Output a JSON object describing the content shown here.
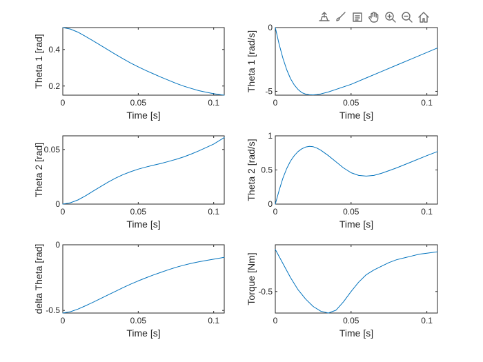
{
  "toolbar": {
    "tools": [
      {
        "icon": "export-icon"
      },
      {
        "icon": "brush-icon"
      },
      {
        "icon": "data-tips-icon"
      },
      {
        "icon": "pan-hand-icon"
      },
      {
        "icon": "zoom-in-icon"
      },
      {
        "icon": "zoom-out-icon"
      },
      {
        "icon": "home-icon"
      }
    ]
  },
  "colors": {
    "line": "#0072BD",
    "axis": "#262626"
  },
  "chart_data": [
    {
      "type": "line",
      "xlabel": "Time [s]",
      "ylabel": "Theta 1 [rad]",
      "xlim": [
        0,
        0.107
      ],
      "ylim": [
        0.15,
        0.52
      ],
      "xticks": [
        0,
        0.05,
        0.1
      ],
      "xtick_labels": [
        "0",
        "0.05",
        "0.1"
      ],
      "yticks": [
        0.2,
        0.4
      ],
      "ytick_labels": [
        "0.2",
        "0.4"
      ],
      "series": [
        {
          "x": [
            0,
            0.005,
            0.01,
            0.015,
            0.02,
            0.025,
            0.03,
            0.035,
            0.04,
            0.045,
            0.05,
            0.055,
            0.06,
            0.065,
            0.07,
            0.075,
            0.08,
            0.085,
            0.09,
            0.095,
            0.1,
            0.105,
            0.107
          ],
          "y": [
            0.52,
            0.512,
            0.495,
            0.472,
            0.448,
            0.423,
            0.398,
            0.373,
            0.349,
            0.326,
            0.305,
            0.285,
            0.267,
            0.249,
            0.232,
            0.215,
            0.2,
            0.187,
            0.175,
            0.166,
            0.158,
            0.152,
            0.15
          ]
        }
      ]
    },
    {
      "type": "line",
      "xlabel": "Time [s]",
      "ylabel": "Theta 1 [rad/s]",
      "xlim": [
        0,
        0.107
      ],
      "ylim": [
        -5.3,
        0
      ],
      "xticks": [
        0,
        0.05,
        0.1
      ],
      "xtick_labels": [
        "0",
        "0.05",
        "0.1"
      ],
      "yticks": [
        -5,
        0
      ],
      "ytick_labels": [
        "-5",
        "0"
      ],
      "series": [
        {
          "x": [
            0,
            0.0025,
            0.005,
            0.0075,
            0.01,
            0.0125,
            0.015,
            0.0175,
            0.02,
            0.0225,
            0.025,
            0.0275,
            0.03,
            0.035,
            0.04,
            0.05,
            0.06,
            0.07,
            0.08,
            0.09,
            0.1,
            0.107
          ],
          "y": [
            0,
            -1.3,
            -2.4,
            -3.3,
            -4.0,
            -4.5,
            -4.85,
            -5.1,
            -5.22,
            -5.27,
            -5.28,
            -5.25,
            -5.2,
            -5.05,
            -4.85,
            -4.45,
            -3.95,
            -3.45,
            -2.95,
            -2.45,
            -1.95,
            -1.6
          ]
        }
      ]
    },
    {
      "type": "line",
      "xlabel": "Time [s]",
      "ylabel": "Theta 2 [rad]",
      "xlim": [
        0,
        0.107
      ],
      "ylim": [
        0,
        0.0625
      ],
      "xticks": [
        0,
        0.05,
        0.1
      ],
      "xtick_labels": [
        "0",
        "0.05",
        "0.1"
      ],
      "yticks": [
        0,
        0.05
      ],
      "ytick_labels": [
        "0",
        "0.05"
      ],
      "series": [
        {
          "x": [
            0,
            0.005,
            0.01,
            0.015,
            0.02,
            0.025,
            0.03,
            0.035,
            0.04,
            0.045,
            0.05,
            0.055,
            0.06,
            0.065,
            0.07,
            0.075,
            0.08,
            0.085,
            0.09,
            0.095,
            0.1,
            0.105,
            0.107
          ],
          "y": [
            0,
            0.0012,
            0.0038,
            0.0075,
            0.0118,
            0.016,
            0.0201,
            0.0238,
            0.027,
            0.0297,
            0.032,
            0.0339,
            0.0356,
            0.0372,
            0.039,
            0.041,
            0.0432,
            0.0458,
            0.0487,
            0.0518,
            0.055,
            0.0592,
            0.061
          ]
        }
      ]
    },
    {
      "type": "line",
      "xlabel": "Time [s]",
      "ylabel": "Theta 2 [rad/s]",
      "xlim": [
        0,
        0.107
      ],
      "ylim": [
        0,
        1
      ],
      "xticks": [
        0,
        0.05,
        0.1
      ],
      "xtick_labels": [
        "0",
        "0.05",
        "0.1"
      ],
      "yticks": [
        0,
        0.5,
        1
      ],
      "ytick_labels": [
        "0",
        "0.5",
        "1"
      ],
      "series": [
        {
          "x": [
            0,
            0.0025,
            0.005,
            0.0075,
            0.01,
            0.0125,
            0.015,
            0.0175,
            0.02,
            0.0225,
            0.025,
            0.0275,
            0.03,
            0.035,
            0.04,
            0.045,
            0.05,
            0.055,
            0.06,
            0.065,
            0.07,
            0.075,
            0.08,
            0.09,
            0.1,
            0.107
          ],
          "y": [
            0,
            0.2,
            0.38,
            0.52,
            0.63,
            0.71,
            0.77,
            0.81,
            0.835,
            0.845,
            0.84,
            0.82,
            0.79,
            0.71,
            0.62,
            0.53,
            0.46,
            0.42,
            0.41,
            0.42,
            0.45,
            0.49,
            0.53,
            0.62,
            0.71,
            0.77
          ]
        }
      ]
    },
    {
      "type": "line",
      "xlabel": "Time [s]",
      "ylabel": "delta Theta [rad]",
      "xlim": [
        0,
        0.107
      ],
      "ylim": [
        -0.52,
        0
      ],
      "xticks": [
        0,
        0.05,
        0.1
      ],
      "xtick_labels": [
        "0",
        "0.05",
        "0.1"
      ],
      "yticks": [
        -0.5,
        0
      ],
      "ytick_labels": [
        "-0.5",
        "0"
      ],
      "series": [
        {
          "x": [
            0,
            0.005,
            0.01,
            0.015,
            0.02,
            0.025,
            0.03,
            0.035,
            0.04,
            0.045,
            0.05,
            0.055,
            0.06,
            0.065,
            0.07,
            0.075,
            0.08,
            0.085,
            0.09,
            0.095,
            0.1,
            0.105,
            0.107
          ],
          "y": [
            -0.52,
            -0.51,
            -0.49,
            -0.465,
            -0.438,
            -0.41,
            -0.382,
            -0.354,
            -0.326,
            -0.3,
            -0.275,
            -0.252,
            -0.23,
            -0.21,
            -0.19,
            -0.172,
            -0.156,
            -0.142,
            -0.13,
            -0.12,
            -0.11,
            -0.1,
            -0.095
          ]
        }
      ]
    },
    {
      "type": "line",
      "xlabel": "Time [s]",
      "ylabel": "Torque [Nm]",
      "xlim": [
        0,
        0.107
      ],
      "ylim": [
        -0.73,
        0
      ],
      "xticks": [
        0,
        0.05,
        0.1
      ],
      "xtick_labels": [
        "0",
        "0.05",
        "0.1"
      ],
      "yticks": [
        -0.5
      ],
      "ytick_labels": [
        "-0.5"
      ],
      "series": [
        {
          "x": [
            0,
            0.005,
            0.01,
            0.015,
            0.02,
            0.025,
            0.03,
            0.035,
            0.04,
            0.045,
            0.05,
            0.055,
            0.06,
            0.065,
            0.07,
            0.075,
            0.08,
            0.085,
            0.09,
            0.095,
            0.1,
            0.105,
            0.107
          ],
          "y": [
            -0.05,
            -0.2,
            -0.35,
            -0.48,
            -0.58,
            -0.66,
            -0.71,
            -0.73,
            -0.7,
            -0.61,
            -0.5,
            -0.4,
            -0.32,
            -0.27,
            -0.23,
            -0.19,
            -0.16,
            -0.14,
            -0.12,
            -0.1,
            -0.09,
            -0.08,
            -0.075
          ]
        }
      ]
    }
  ]
}
